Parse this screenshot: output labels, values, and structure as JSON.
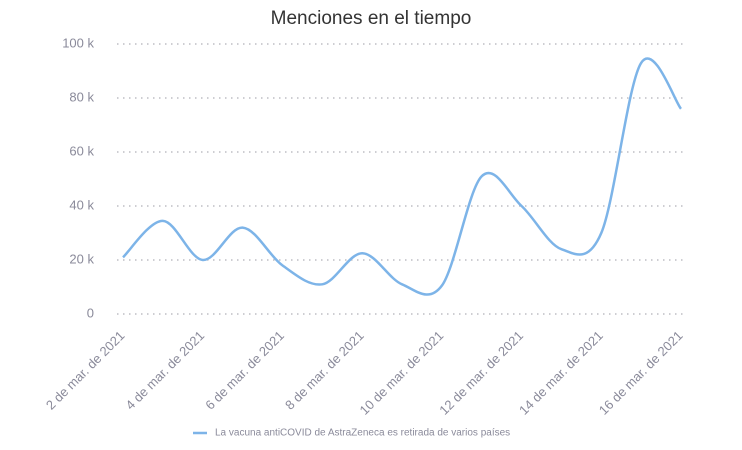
{
  "chart_data": {
    "type": "line",
    "title": "Menciones en el tiempo",
    "categories": [
      "2 de mar. de 2021",
      null,
      "4 de mar. de 2021",
      null,
      "6 de mar. de 2021",
      null,
      "8 de mar. de 2021",
      null,
      "10 de mar. de 2021",
      null,
      "12 de mar. de 2021",
      null,
      "14 de mar. de 2021",
      null,
      "16 de mar. de 2021"
    ],
    "series": [
      {
        "name": "La vacuna antiCOVID de AstraZeneca es retirada de varios países",
        "color": "#7db4e8",
        "values": [
          21000,
          34500,
          20000,
          32000,
          18000,
          11000,
          22500,
          11000,
          10500,
          51000,
          40000,
          24000,
          30000,
          93000,
          76000
        ]
      }
    ],
    "ylim": [
      0,
      100000
    ],
    "yticks": [
      {
        "value": 0,
        "label": "0"
      },
      {
        "value": 20000,
        "label": "20 k"
      },
      {
        "value": 40000,
        "label": "40 k"
      },
      {
        "value": 60000,
        "label": "60 k"
      },
      {
        "value": 80000,
        "label": "80 k"
      },
      {
        "value": 100000,
        "label": "100 k"
      }
    ],
    "grid": true
  }
}
